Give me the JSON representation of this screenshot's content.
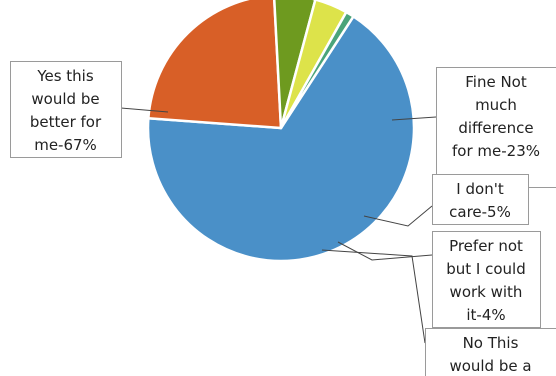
{
  "chart_data": {
    "type": "pie",
    "title": "",
    "legend": "none",
    "slices": [
      {
        "label_lines": [
          "Yes this",
          "would be",
          "better for",
          "me-67%"
        ],
        "value": 67,
        "color": "#4a90c8"
      },
      {
        "label_lines": [
          "Fine Not",
          "much",
          "difference",
          "for me-23%"
        ],
        "value": 23,
        "color": "#d85f27"
      },
      {
        "label_lines": [
          "I don't",
          "care-5%"
        ],
        "value": 5,
        "color": "#6e9a1f"
      },
      {
        "label_lines": [
          "Prefer not",
          "but I could",
          "work with",
          "it-4%"
        ],
        "value": 4,
        "color": "#dde34a"
      },
      {
        "label_lines": [
          "No This",
          "would be a"
        ],
        "value": 1,
        "color": "#4aa47a"
      }
    ]
  }
}
